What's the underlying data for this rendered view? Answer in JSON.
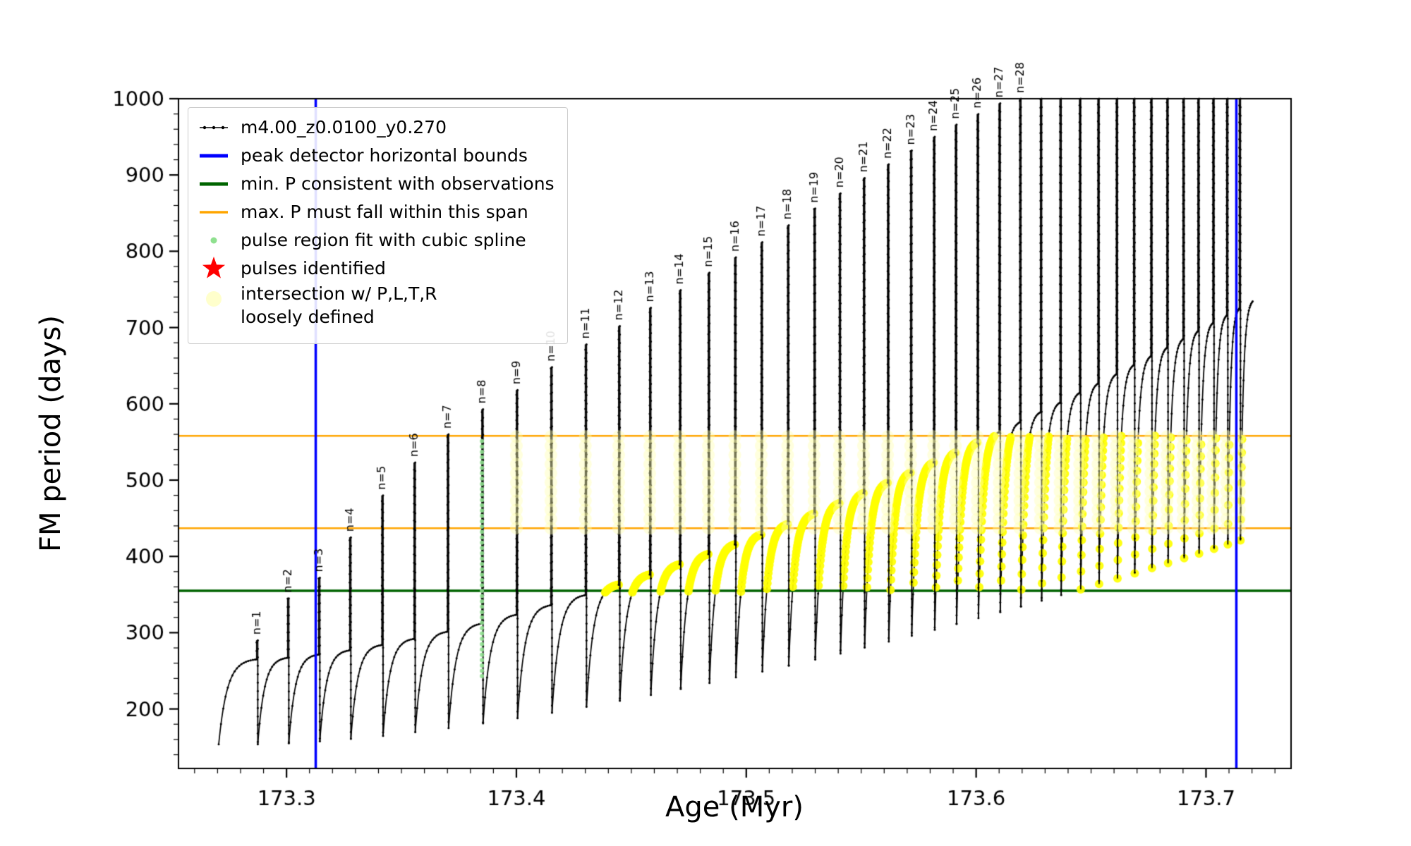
{
  "colors": {
    "series": "#000000",
    "blue": "#0000ff",
    "dark_green": "#006400",
    "orange": "#ffa500",
    "pulse_green": "#8fe08f",
    "red": "#ff0000",
    "yellow": "#ffff00",
    "pale_yellow": "#ffffb0"
  },
  "legend": {
    "entries": [
      {
        "marker": "line-dot",
        "label": "m4.00_z0.0100_y0.270"
      },
      {
        "marker": "blue-line",
        "label": "peak detector horizontal bounds"
      },
      {
        "marker": "green-line",
        "label": "min. P consistent with observations"
      },
      {
        "marker": "orange-line",
        "label": "max. P must fall within this span"
      },
      {
        "marker": "green-dot",
        "label": "pulse region fit with cubic spline"
      },
      {
        "marker": "red-star",
        "label": "pulses identified"
      },
      {
        "marker": "yellow-dot",
        "label": "intersection w/ P,L,T,R",
        "label2": "loosely defined"
      }
    ]
  },
  "chart_data": {
    "type": "line",
    "title": "",
    "xlabel": "Age (Myr)",
    "ylabel": "FM period (days)",
    "xlim": [
      173.253,
      173.737
    ],
    "ylim": [
      122,
      1000
    ],
    "xticks": [
      173.3,
      173.4,
      173.5,
      173.6,
      173.7
    ],
    "yticks": [
      200,
      300,
      400,
      500,
      600,
      700,
      800,
      900,
      1000
    ],
    "x_minor_step": 0.01,
    "y_minor_step": 20,
    "grid": false,
    "legend_position": "upper-left",
    "series_name": "m4.00_z0.0100_y0.270",
    "hlines": [
      {
        "name": "min-P-consistent",
        "y": 355,
        "color": "#006400",
        "width": 3.5
      },
      {
        "name": "max-P-span-lower",
        "y": 437,
        "color": "#ffa500",
        "width": 2.5
      },
      {
        "name": "max-P-span-upper",
        "y": 558,
        "color": "#ffa500",
        "width": 2.5
      }
    ],
    "vlines": [
      {
        "name": "peak-detector-left",
        "x": 173.3127,
        "color": "#0000ff",
        "width": 3.5
      },
      {
        "name": "peak-detector-right",
        "x": 173.7132,
        "color": "#0000ff",
        "width": 3.5
      }
    ],
    "pulse_spline_region": {
      "x": 173.385,
      "y_from": 243,
      "y_to": 556,
      "color": "#8fe08f"
    },
    "yellow_intersection": {
      "x_from": 173.418,
      "x_to": 173.716,
      "y_from": 352,
      "y_to": 558,
      "color": "#ffff00"
    },
    "loose_intersection": {
      "x_from": 173.388,
      "x_to": 173.716,
      "y_from": 437,
      "y_to": 560,
      "color": "#ffffb0"
    },
    "curve_model": {
      "start_x": 173.2705,
      "end_x": 173.7205,
      "shoulder_start": 265,
      "shoulder_end": 735,
      "shoulder_exp": 1.55,
      "min_ratio": 0.58,
      "rise_rate": 4.5
    },
    "pulses": [
      {
        "label": "n=1",
        "x": 173.287,
        "peak": 290
      },
      {
        "label": "n=2",
        "x": 173.3005,
        "peak": 345
      },
      {
        "label": "n=3",
        "x": 173.314,
        "peak": 372
      },
      {
        "label": "n=4",
        "x": 173.3275,
        "peak": 425
      },
      {
        "label": "n=5",
        "x": 173.3415,
        "peak": 480
      },
      {
        "label": "n=6",
        "x": 173.3555,
        "peak": 523
      },
      {
        "label": "n=7",
        "x": 173.37,
        "peak": 560
      },
      {
        "label": "n=8",
        "x": 173.385,
        "peak": 593
      },
      {
        "label": "n=9",
        "x": 173.4,
        "peak": 618
      },
      {
        "label": "n=10",
        "x": 173.415,
        "peak": 648
      },
      {
        "label": "n=11",
        "x": 173.43,
        "peak": 678
      },
      {
        "label": "n=12",
        "x": 173.4445,
        "peak": 702
      },
      {
        "label": "n=13",
        "x": 173.458,
        "peak": 726
      },
      {
        "label": "n=14",
        "x": 173.471,
        "peak": 749
      },
      {
        "label": "n=15",
        "x": 173.4835,
        "peak": 772
      },
      {
        "label": "n=16",
        "x": 173.495,
        "peak": 792
      },
      {
        "label": "n=17",
        "x": 173.5065,
        "peak": 812
      },
      {
        "label": "n=18",
        "x": 173.518,
        "peak": 834
      },
      {
        "label": "n=19",
        "x": 173.5295,
        "peak": 856
      },
      {
        "label": "n=20",
        "x": 173.5405,
        "peak": 876
      },
      {
        "label": "n=21",
        "x": 173.551,
        "peak": 896
      },
      {
        "label": "n=22",
        "x": 173.5615,
        "peak": 914
      },
      {
        "label": "n=23",
        "x": 173.5715,
        "peak": 932
      },
      {
        "label": "n=24",
        "x": 173.5815,
        "peak": 950
      },
      {
        "label": "n=25",
        "x": 173.591,
        "peak": 966
      },
      {
        "label": "n=26",
        "x": 173.6005,
        "peak": 980
      },
      {
        "label": "n=27",
        "x": 173.61,
        "peak": 994
      },
      {
        "label": "n=28",
        "x": 173.619,
        "peak": 1008
      },
      {
        "label": "",
        "x": 173.628,
        "peak": 1020
      },
      {
        "label": "",
        "x": 173.6365,
        "peak": 1030
      },
      {
        "label": "",
        "x": 173.645,
        "peak": 1040
      },
      {
        "label": "",
        "x": 173.653,
        "peak": 1050
      },
      {
        "label": "",
        "x": 173.661,
        "peak": 1058
      },
      {
        "label": "",
        "x": 173.6685,
        "peak": 1066
      },
      {
        "label": "",
        "x": 173.676,
        "peak": 1072
      },
      {
        "label": "",
        "x": 173.683,
        "peak": 1078
      },
      {
        "label": "",
        "x": 173.69,
        "peak": 1084
      },
      {
        "label": "",
        "x": 173.6965,
        "peak": 1090
      },
      {
        "label": "",
        "x": 173.703,
        "peak": 1095
      },
      {
        "label": "",
        "x": 173.709,
        "peak": 1100
      },
      {
        "label": "",
        "x": 173.7145,
        "peak": 1105
      }
    ]
  }
}
